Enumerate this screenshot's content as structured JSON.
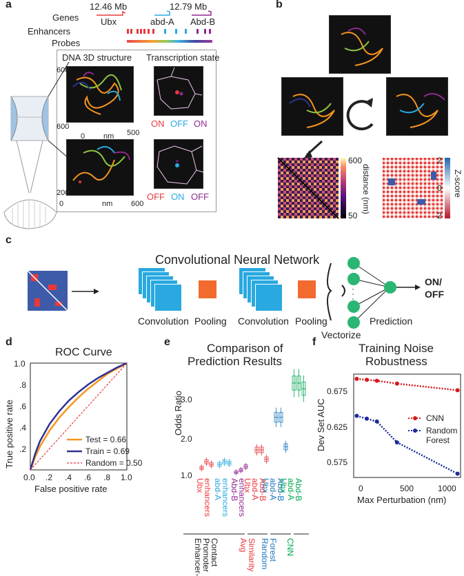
{
  "panels": {
    "a": "a",
    "b": "b",
    "c": "c",
    "d": "d",
    "e": "e",
    "f": "f"
  },
  "panel_a": {
    "pos_left": "12.46 Mb",
    "pos_right": "12.79 Mb",
    "row_genes": "Genes",
    "row_enhancers": "Enhancers",
    "row_probes": "Probes",
    "gene_ubx": "Ubx",
    "gene_abda": "abd-A",
    "gene_abdb": "Abd-B",
    "title_structure": "DNA 3D structure",
    "title_transcription": "Transcription state",
    "cube1_y": "600",
    "cube1_x0": "600",
    "cube1_x1": "0",
    "cube1_nm": "nm",
    "cube1_x2": "500",
    "cube2_y": "200",
    "cube2_x0": "0",
    "cube2_nm": "nm",
    "cube2_x1": "600",
    "state1": {
      "a": "ON",
      "b": "OFF",
      "c": "ON"
    },
    "state2": {
      "a": "OFF",
      "b": "ON",
      "c": "OFF"
    }
  },
  "panel_b": {
    "dist_label": "distance (nm)",
    "dist_max": "600",
    "dist_min": "50",
    "z_label": "Z-score",
    "z_max": "2",
    "z_mid": "0",
    "z_min": "-2"
  },
  "panel_c": {
    "title": "Convolutional Neural Network",
    "conv1": "Convolution",
    "pool1": "Pooling",
    "conv2": "Convolution",
    "pool2": "Pooling",
    "vectorize": "Vectorize",
    "prediction": "Prediction",
    "output": "ON/\nOFF",
    "dots": "·\n·\n·"
  },
  "panel_d": {
    "title": "ROC Curve",
    "xlabel": "False positive rate",
    "ylabel": "True positive rate",
    "yticks": [
      "1.0",
      ".8",
      ".6",
      ".4",
      ".2",
      "0.0"
    ],
    "xticks": [
      "0.0",
      ".2",
      ".4",
      ".6",
      ".8",
      "1.0"
    ],
    "legend": [
      "Test = 0.66",
      "Train = 0.69",
      "Random = 0.50"
    ]
  },
  "panel_e": {
    "title_line1": "Comparison of",
    "title_line2": "Prediction Results",
    "ylabel": "Odds Ratio",
    "yticks": [
      "3.0",
      "2.0",
      "1.0"
    ],
    "cat_labels": [
      {
        "l1": "Ubx",
        "l2": "enhancers",
        "color": "#e8383d"
      },
      {
        "l1": "abd-A",
        "l2": "enhancers",
        "color": "#29a9e0"
      },
      {
        "l1": "Abd-B",
        "l2": "enhancers",
        "color": "#92278f"
      },
      {
        "l1": "Ubx",
        "l2": "abd-A",
        "l3": "Abd-B",
        "color": "#e8383d"
      },
      {
        "l1": "Ubx",
        "l2": "abd-A",
        "l3": "Abd-B",
        "color": "#1b75bc"
      },
      {
        "l1": "Ubx",
        "l2": "abd-A",
        "l3": "Abd-B",
        "color": "#00a651"
      }
    ],
    "group_labels": [
      {
        "lines": [
          "Enhancer-",
          "Promoter",
          "Contact"
        ],
        "color": "#222"
      },
      {
        "lines": [
          "Avg",
          "Similarity"
        ],
        "color": "#e8383d"
      },
      {
        "lines": [
          "Random",
          "Forest"
        ],
        "color": "#1b75bc"
      },
      {
        "lines": [
          "CNN"
        ],
        "color": "#00a651"
      }
    ]
  },
  "panel_f": {
    "title_line1": "Training Noise",
    "title_line2": "Robustness",
    "ylabel": "Dev Set AUC",
    "xlabel": "Max Perturbation (nm)",
    "yticks": [
      "0.675",
      "0.625",
      "0.575"
    ],
    "xticks": [
      "0",
      "500",
      "1000"
    ],
    "legend": [
      "CNN",
      "Random\nForest"
    ]
  },
  "chart_data": [
    {
      "type": "line",
      "title": "ROC Curve",
      "xlabel": "False positive rate",
      "ylabel": "True positive rate",
      "xlim": [
        0,
        1
      ],
      "ylim": [
        0,
        1
      ],
      "series": [
        {
          "name": "Test = 0.66",
          "color": "#f7941d",
          "x": [
            0,
            0.05,
            0.1,
            0.2,
            0.3,
            0.4,
            0.5,
            0.6,
            0.7,
            0.8,
            0.9,
            1
          ],
          "y": [
            0,
            0.12,
            0.22,
            0.37,
            0.49,
            0.59,
            0.68,
            0.76,
            0.83,
            0.9,
            0.95,
            1
          ]
        },
        {
          "name": "Train = 0.69",
          "color": "#2e3192",
          "x": [
            0,
            0.05,
            0.1,
            0.2,
            0.3,
            0.4,
            0.5,
            0.6,
            0.7,
            0.8,
            0.9,
            1
          ],
          "y": [
            0,
            0.15,
            0.27,
            0.43,
            0.55,
            0.65,
            0.73,
            0.8,
            0.86,
            0.91,
            0.96,
            1
          ]
        },
        {
          "name": "Random = 0.50",
          "color": "#e8383d",
          "x": [
            0,
            1
          ],
          "y": [
            0,
            1
          ]
        }
      ]
    },
    {
      "type": "box",
      "title": "Comparison of Prediction Results",
      "ylabel": "Odds Ratio",
      "ylim": [
        0.95,
        3.3
      ],
      "series": [
        {
          "color": "#e8383d",
          "medians": [
            1.12,
            1.26,
            1.2
          ]
        },
        {
          "color": "#29a9e0",
          "medians": [
            1.2,
            1.26,
            1.23
          ]
        },
        {
          "color": "#92278f",
          "medians": [
            1.02,
            1.07,
            1.15
          ]
        },
        {
          "color": "#e8383d",
          "medians": [
            1.53,
            1.53,
            1.32
          ]
        },
        {
          "color": "#1b75bc",
          "medians": [
            2.27,
            2.27,
            1.6
          ]
        },
        {
          "color": "#00a651",
          "medians": [
            3.05,
            3.05,
            2.92
          ]
        }
      ]
    },
    {
      "type": "line",
      "title": "Training Noise Robustness",
      "xlabel": "Max Perturbation (nm)",
      "ylabel": "Dev Set AUC",
      "xlim": [
        -30,
        1030
      ],
      "ylim": [
        0.572,
        0.681
      ],
      "series": [
        {
          "name": "CNN",
          "color": "#d7191c",
          "x": [
            0,
            100,
            200,
            400,
            1000
          ],
          "y": [
            0.676,
            0.675,
            0.674,
            0.671,
            0.664
          ]
        },
        {
          "name": "Random\nForest",
          "color": "#1b2a9c",
          "x": [
            0,
            100,
            200,
            400,
            1000
          ],
          "y": [
            0.637,
            0.634,
            0.631,
            0.609,
            0.576
          ]
        }
      ]
    }
  ]
}
